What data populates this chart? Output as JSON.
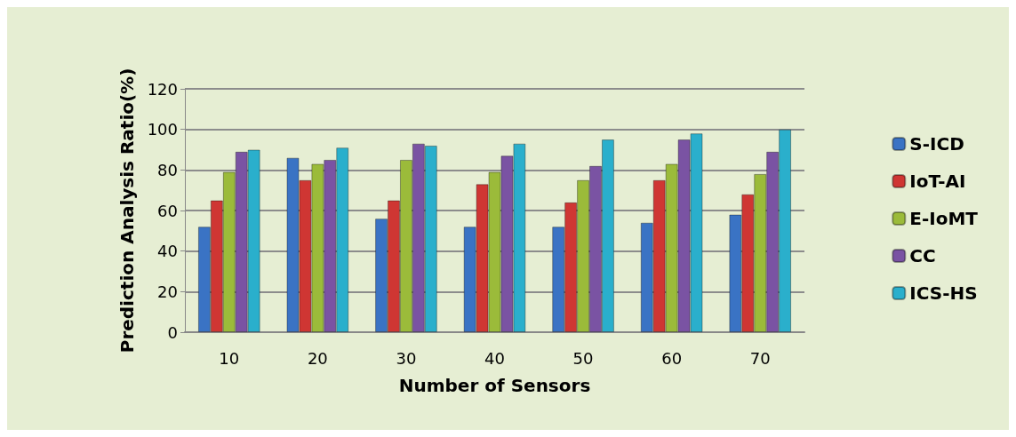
{
  "chart_data": {
    "type": "bar",
    "xlabel": "Number of Sensors",
    "ylabel": "Prediction Analysis Ratio(%)",
    "categories": [
      "10",
      "20",
      "30",
      "40",
      "50",
      "60",
      "70"
    ],
    "series": [
      {
        "name": "S-ICD",
        "color": "#3a73c4",
        "values": [
          52,
          86,
          56,
          52,
          52,
          54,
          58
        ]
      },
      {
        "name": "IoT-AI",
        "color": "#cf3633",
        "values": [
          65,
          75,
          65,
          73,
          64,
          75,
          68
        ]
      },
      {
        "name": "E-IoMT",
        "color": "#9bbb3a",
        "values": [
          79,
          83,
          85,
          79,
          75,
          83,
          78
        ]
      },
      {
        "name": "CC",
        "color": "#7a53a3",
        "values": [
          89,
          85,
          93,
          87,
          82,
          95,
          89
        ]
      },
      {
        "name": "ICS-HS",
        "color": "#2aafcc",
        "values": [
          90,
          91,
          92,
          93,
          95,
          98,
          100
        ]
      }
    ],
    "ylim": [
      0,
      120
    ],
    "yticks": [
      0,
      20,
      40,
      60,
      80,
      100,
      120
    ],
    "grid": "y",
    "legend": "right"
  }
}
